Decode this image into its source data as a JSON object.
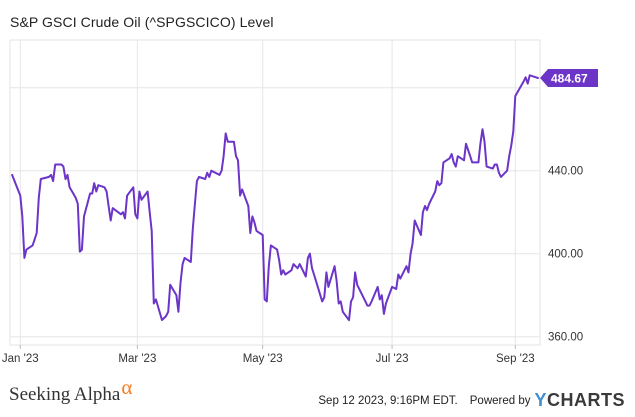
{
  "title": "S&P GSCI Crude Oil (^SPGSCICO) Level",
  "chart_data": {
    "type": "line",
    "title": "S&P GSCI Crude Oil (^SPGSCICO) Level",
    "x_tick_labels": [
      "Jan '23",
      "Mar '23",
      "May '23",
      "Jul '23",
      "Sep '23"
    ],
    "x_tick_dates": [
      "2023-01-03",
      "2023-03-01",
      "2023-05-01",
      "2023-07-03",
      "2023-09-01"
    ],
    "y_tick_labels": [
      "360.00",
      "400.00",
      "440.00"
    ],
    "y_ticks": [
      360,
      400,
      440,
      480
    ],
    "ylim": [
      356,
      503
    ],
    "xlim": [
      "2022-12-29",
      "2023-09-13"
    ],
    "grid": true,
    "series_color": "#6c35c8",
    "last_value_label": "484.67",
    "series": [
      {
        "x": [
          "2022-12-30",
          "2023-01-03",
          "2023-01-04",
          "2023-01-05",
          "2023-01-06",
          "2023-01-09",
          "2023-01-10",
          "2023-01-11",
          "2023-01-12",
          "2023-01-13",
          "2023-01-17",
          "2023-01-18",
          "2023-01-19",
          "2023-01-20",
          "2023-01-23",
          "2023-01-24",
          "2023-01-25",
          "2023-01-26",
          "2023-01-27",
          "2023-01-30",
          "2023-01-31",
          "2023-02-01",
          "2023-02-02",
          "2023-02-03",
          "2023-02-06",
          "2023-02-07",
          "2023-02-08",
          "2023-02-09",
          "2023-02-10",
          "2023-02-13",
          "2023-02-14",
          "2023-02-15",
          "2023-02-16",
          "2023-02-17",
          "2023-02-21",
          "2023-02-22",
          "2023-02-23",
          "2023-02-24",
          "2023-02-27",
          "2023-02-28",
          "2023-03-01",
          "2023-03-02",
          "2023-03-03",
          "2023-03-06",
          "2023-03-07",
          "2023-03-08",
          "2023-03-09",
          "2023-03-10",
          "2023-03-13",
          "2023-03-14",
          "2023-03-15",
          "2023-03-16",
          "2023-03-17",
          "2023-03-20",
          "2023-03-21",
          "2023-03-22",
          "2023-03-23",
          "2023-03-24",
          "2023-03-27",
          "2023-03-28",
          "2023-03-29",
          "2023-03-30",
          "2023-03-31",
          "2023-04-03",
          "2023-04-04",
          "2023-04-05",
          "2023-04-06",
          "2023-04-10",
          "2023-04-11",
          "2023-04-12",
          "2023-04-13",
          "2023-04-14",
          "2023-04-17",
          "2023-04-18",
          "2023-04-19",
          "2023-04-20",
          "2023-04-21",
          "2023-04-24",
          "2023-04-25",
          "2023-04-26",
          "2023-04-27",
          "2023-04-28",
          "2023-05-01",
          "2023-05-02",
          "2023-05-03",
          "2023-05-04",
          "2023-05-05",
          "2023-05-08",
          "2023-05-09",
          "2023-05-10",
          "2023-05-11",
          "2023-05-12",
          "2023-05-15",
          "2023-05-16",
          "2023-05-17",
          "2023-05-18",
          "2023-05-19",
          "2023-05-22",
          "2023-05-23",
          "2023-05-24",
          "2023-05-25",
          "2023-05-26",
          "2023-05-30",
          "2023-05-31",
          "2023-06-01",
          "2023-06-02",
          "2023-06-05",
          "2023-06-06",
          "2023-06-07",
          "2023-06-08",
          "2023-06-09",
          "2023-06-12",
          "2023-06-13",
          "2023-06-14",
          "2023-06-15",
          "2023-06-16",
          "2023-06-20",
          "2023-06-21",
          "2023-06-22",
          "2023-06-23",
          "2023-06-26",
          "2023-06-27",
          "2023-06-28",
          "2023-06-29",
          "2023-06-30",
          "2023-07-03",
          "2023-07-05",
          "2023-07-06",
          "2023-07-07",
          "2023-07-10",
          "2023-07-11",
          "2023-07-12",
          "2023-07-13",
          "2023-07-14",
          "2023-07-17",
          "2023-07-18",
          "2023-07-19",
          "2023-07-20",
          "2023-07-21",
          "2023-07-24",
          "2023-07-25",
          "2023-07-26",
          "2023-07-27",
          "2023-07-28",
          "2023-07-31",
          "2023-08-01",
          "2023-08-02",
          "2023-08-03",
          "2023-08-04",
          "2023-08-07",
          "2023-08-08",
          "2023-08-09",
          "2023-08-10",
          "2023-08-11",
          "2023-08-14",
          "2023-08-15",
          "2023-08-16",
          "2023-08-17",
          "2023-08-18",
          "2023-08-21",
          "2023-08-22",
          "2023-08-23",
          "2023-08-24",
          "2023-08-25",
          "2023-08-28",
          "2023-08-29",
          "2023-08-30",
          "2023-08-31",
          "2023-09-01",
          "2023-09-05",
          "2023-09-06",
          "2023-09-07",
          "2023-09-08",
          "2023-09-11",
          "2023-09-12"
        ],
        "y": [
          438,
          428,
          418,
          398,
          402,
          404,
          407,
          410,
          427,
          436,
          437,
          438,
          435,
          443,
          443,
          442,
          436,
          438,
          432,
          427,
          424,
          401,
          402,
          418,
          429,
          429,
          434,
          430,
          433,
          432,
          430,
          423,
          416,
          422,
          419,
          420,
          417,
          428,
          432,
          419,
          417,
          430,
          426,
          430,
          420,
          411,
          376,
          378,
          368,
          369,
          370,
          372,
          385,
          380,
          372,
          386,
          395,
          398,
          396,
          412,
          424,
          435,
          437,
          436,
          439,
          437,
          440,
          438,
          440,
          447,
          458,
          454,
          454,
          447,
          445,
          428,
          431,
          423,
          410,
          418,
          415,
          411,
          409,
          378,
          377,
          394,
          404,
          402,
          397,
          390,
          392,
          390,
          392,
          395,
          394,
          393,
          395,
          389,
          398,
          400,
          393,
          390,
          377,
          379,
          391,
          384,
          394,
          387,
          376,
          377,
          372,
          368,
          377,
          379,
          391,
          385,
          377,
          375,
          375,
          377,
          384,
          378,
          380,
          371,
          376,
          384,
          383,
          390,
          388,
          394,
          391,
          400,
          405,
          416,
          409,
          420,
          423,
          421,
          424,
          430,
          435,
          433,
          434,
          444,
          446,
          448,
          444,
          442,
          447,
          445,
          453,
          450,
          447,
          444,
          444,
          453,
          460,
          454,
          442,
          441,
          443,
          443,
          439,
          437,
          440,
          447,
          452,
          459,
          476,
          483,
          485,
          482,
          486,
          485,
          484.67
        ]
      }
    ]
  }
}
